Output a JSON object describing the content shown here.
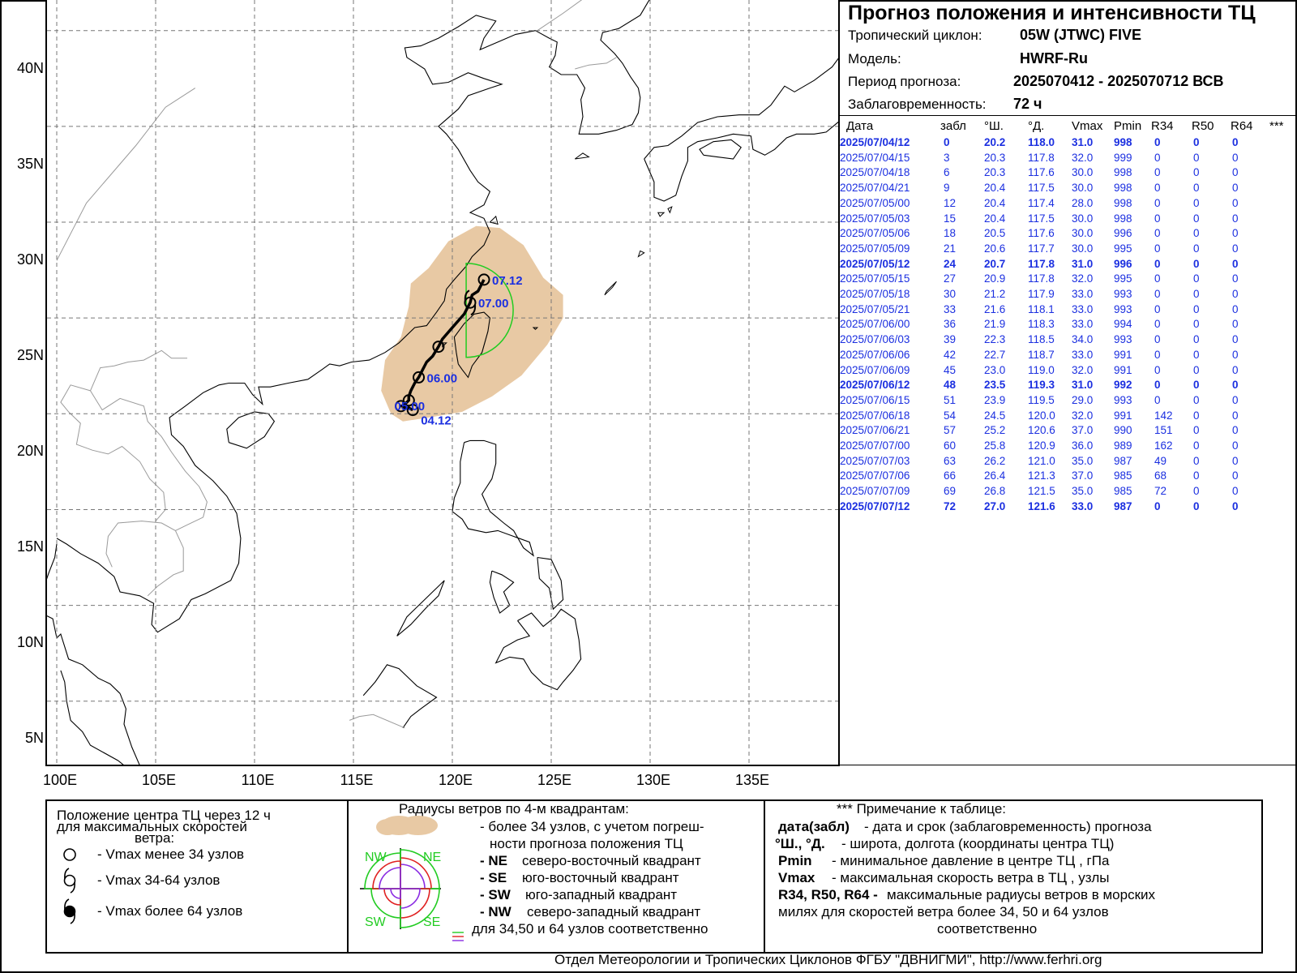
{
  "map": {
    "lat_labels": [
      "40N",
      "35N",
      "30N",
      "25N",
      "20N",
      "15N",
      "10N",
      "5N"
    ],
    "lon_labels": [
      "100E",
      "105E",
      "110E",
      "115E",
      "120E",
      "125E",
      "130E",
      "135E"
    ],
    "track_labels": [
      {
        "text": "07.12",
        "lat": 27.0,
        "lon": 121.6
      },
      {
        "text": "07.00",
        "lat": 25.8,
        "lon": 120.9
      },
      {
        "text": "06.00",
        "lat": 21.9,
        "lon": 118.3
      },
      {
        "text": "05.00",
        "lat": 20.4,
        "lon": 117.4
      },
      {
        "text": "04.12",
        "lat": 20.2,
        "lon": 118.0
      }
    ],
    "colors": {
      "track": "#000000",
      "label": "#1b2fe0",
      "uncertainty": "#e8c9a4",
      "r34": "#22cc22",
      "coast": "#000000",
      "border": "#9a9a9a",
      "grid": "#777777"
    }
  },
  "info": {
    "title": "Прогноз положения и интенсивности ТЦ",
    "cyclone_label": "Тропический циклон:",
    "cyclone_value": "05W (JTWC)  FIVE",
    "model_label": "Модель:",
    "model_value": "HWRF-Ru",
    "period_label": "Период прогноза:",
    "period_value": "2025070412 - 2025070712 ВСВ",
    "lead_label": "Заблаговременность:",
    "lead_value": "72 ч"
  },
  "table": {
    "headers": [
      "Дата",
      "забл",
      "°Ш.",
      "°Д.",
      "Vmax",
      "Pmin",
      "R34",
      "R50",
      "R64",
      "***"
    ],
    "rows": [
      {
        "bold": true,
        "cells": [
          "2025/07/04/12",
          "0",
          "20.2",
          "118.0",
          "31.0",
          "998",
          "0",
          "0",
          "0"
        ]
      },
      {
        "bold": false,
        "cells": [
          "2025/07/04/15",
          "3",
          "20.3",
          "117.8",
          "32.0",
          "999",
          "0",
          "0",
          "0"
        ]
      },
      {
        "bold": false,
        "cells": [
          "2025/07/04/18",
          "6",
          "20.3",
          "117.6",
          "30.0",
          "998",
          "0",
          "0",
          "0"
        ]
      },
      {
        "bold": false,
        "cells": [
          "2025/07/04/21",
          "9",
          "20.4",
          "117.5",
          "30.0",
          "998",
          "0",
          "0",
          "0"
        ]
      },
      {
        "bold": false,
        "cells": [
          "2025/07/05/00",
          "12",
          "20.4",
          "117.4",
          "28.0",
          "998",
          "0",
          "0",
          "0"
        ]
      },
      {
        "bold": false,
        "cells": [
          "2025/07/05/03",
          "15",
          "20.4",
          "117.5",
          "30.0",
          "998",
          "0",
          "0",
          "0"
        ]
      },
      {
        "bold": false,
        "cells": [
          "2025/07/05/06",
          "18",
          "20.5",
          "117.6",
          "30.0",
          "996",
          "0",
          "0",
          "0"
        ]
      },
      {
        "bold": false,
        "cells": [
          "2025/07/05/09",
          "21",
          "20.6",
          "117.7",
          "30.0",
          "995",
          "0",
          "0",
          "0"
        ]
      },
      {
        "bold": true,
        "cells": [
          "2025/07/05/12",
          "24",
          "20.7",
          "117.8",
          "31.0",
          "996",
          "0",
          "0",
          "0"
        ]
      },
      {
        "bold": false,
        "cells": [
          "2025/07/05/15",
          "27",
          "20.9",
          "117.8",
          "32.0",
          "995",
          "0",
          "0",
          "0"
        ]
      },
      {
        "bold": false,
        "cells": [
          "2025/07/05/18",
          "30",
          "21.2",
          "117.9",
          "33.0",
          "993",
          "0",
          "0",
          "0"
        ]
      },
      {
        "bold": false,
        "cells": [
          "2025/07/05/21",
          "33",
          "21.6",
          "118.1",
          "33.0",
          "993",
          "0",
          "0",
          "0"
        ]
      },
      {
        "bold": false,
        "cells": [
          "2025/07/06/00",
          "36",
          "21.9",
          "118.3",
          "33.0",
          "994",
          "0",
          "0",
          "0"
        ]
      },
      {
        "bold": false,
        "cells": [
          "2025/07/06/03",
          "39",
          "22.3",
          "118.5",
          "34.0",
          "993",
          "0",
          "0",
          "0"
        ]
      },
      {
        "bold": false,
        "cells": [
          "2025/07/06/06",
          "42",
          "22.7",
          "118.7",
          "33.0",
          "991",
          "0",
          "0",
          "0"
        ]
      },
      {
        "bold": false,
        "cells": [
          "2025/07/06/09",
          "45",
          "23.0",
          "119.0",
          "32.0",
          "991",
          "0",
          "0",
          "0"
        ]
      },
      {
        "bold": true,
        "cells": [
          "2025/07/06/12",
          "48",
          "23.5",
          "119.3",
          "31.0",
          "992",
          "0",
          "0",
          "0"
        ]
      },
      {
        "bold": false,
        "cells": [
          "2025/07/06/15",
          "51",
          "23.9",
          "119.5",
          "29.0",
          "993",
          "0",
          "0",
          "0"
        ]
      },
      {
        "bold": false,
        "cells": [
          "2025/07/06/18",
          "54",
          "24.5",
          "120.0",
          "32.0",
          "991",
          "142",
          "0",
          "0"
        ]
      },
      {
        "bold": false,
        "cells": [
          "2025/07/06/21",
          "57",
          "25.2",
          "120.6",
          "37.0",
          "990",
          "151",
          "0",
          "0"
        ]
      },
      {
        "bold": false,
        "cells": [
          "2025/07/07/00",
          "60",
          "25.8",
          "120.9",
          "36.0",
          "989",
          "162",
          "0",
          "0"
        ]
      },
      {
        "bold": false,
        "cells": [
          "2025/07/07/03",
          "63",
          "26.2",
          "121.0",
          "35.0",
          "987",
          "49",
          "0",
          "0"
        ]
      },
      {
        "bold": false,
        "cells": [
          "2025/07/07/06",
          "66",
          "26.4",
          "121.3",
          "37.0",
          "985",
          "68",
          "0",
          "0"
        ]
      },
      {
        "bold": false,
        "cells": [
          "2025/07/07/09",
          "69",
          "26.8",
          "121.5",
          "35.0",
          "985",
          "72",
          "0",
          "0"
        ]
      },
      {
        "bold": true,
        "cells": [
          "2025/07/07/12",
          "72",
          "27.0",
          "121.6",
          "33.0",
          "987",
          "0",
          "0",
          "0"
        ]
      }
    ]
  },
  "legend": {
    "left": {
      "title1": "Положение центра ТЦ через 12 ч",
      "title2": "для максимальных скоростей",
      "title3": "ветра:",
      "item1": "- Vmax  менее 34 узлов",
      "item2": "- Vmax  34-64 узлов",
      "item3": "- Vmax  более 64 узлов"
    },
    "middle": {
      "title": "Радиусы ветров по 4-м квадрантам:",
      "line1": "- более 34 узлов, с учетом погреш-",
      "line2": "ности прогноза положения ТЦ",
      "ne_key": "- NE",
      "ne_text": "северо-восточный квадрант",
      "se_key": "- SE",
      "se_text": "юго-восточный квадрант",
      "sw_key": "- SW",
      "sw_text": "юго-западный квадрант",
      "nw_key": "- NW",
      "nw_text": "северо-западный квадрант",
      "last": "для 34,50 и 64 узлов соответственно",
      "q_nw": "NW",
      "q_ne": "NE",
      "q_sw": "SW",
      "q_se": "SE"
    },
    "right": {
      "title": "*** Примечание к таблице:",
      "k1": "дата(забл)",
      "v1": "- дата и срок (заблаговременность) прогноза",
      "k2": "°Ш., °Д.",
      "v2": "- широта, долгота   (координаты центра ТЦ)",
      "k3": "Pmin",
      "v3": "- минимальное давление в центре ТЦ , гПа",
      "k4": "Vmax",
      "v4": "-  максимальная скорость ветра в ТЦ , узлы",
      "k5": "R34, R50, R64 -",
      "v5": " максимальные радиусы ветров в морских",
      "v6": "милях для скоростей ветра более 34, 50 и 64 узлов",
      "v7": "соответственно"
    }
  },
  "footer": "Отдел Метеорологии и Тропических Циклонов ФГБУ \"ДВНИГМИ\",  http://www.ferhri.org"
}
